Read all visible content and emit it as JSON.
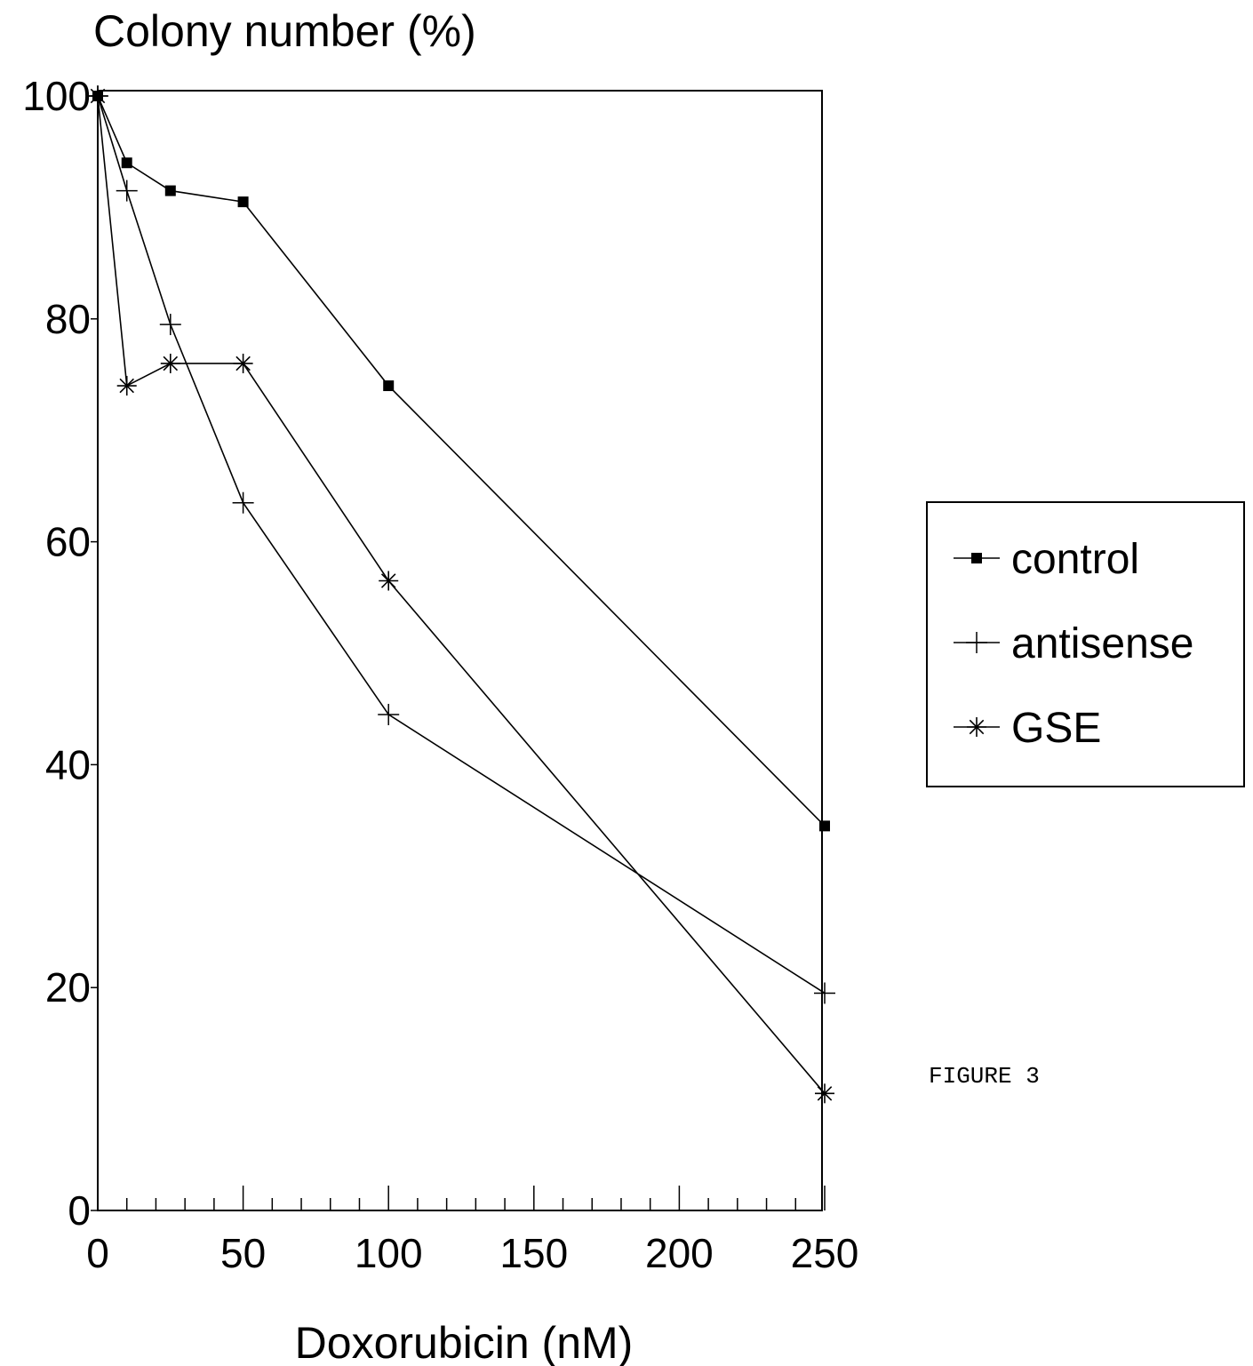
{
  "chart_data": {
    "type": "line",
    "ylabel": "Colony number (%)",
    "xlabel": "Doxorubicin (nM)",
    "xlim": [
      0,
      250
    ],
    "ylim": [
      0,
      100
    ],
    "x_ticks": [
      0,
      50,
      100,
      150,
      200,
      250
    ],
    "y_ticks": [
      0,
      20,
      40,
      60,
      80,
      100
    ],
    "grid": false,
    "legend_position": "right",
    "series": [
      {
        "name": "control",
        "marker": "square",
        "x": [
          0,
          10,
          25,
          50,
          100,
          250
        ],
        "y": [
          100,
          94,
          91.5,
          90.5,
          74,
          34.5
        ]
      },
      {
        "name": "antisense",
        "marker": "plus",
        "x": [
          0,
          10,
          25,
          50,
          100,
          250
        ],
        "y": [
          100,
          91.5,
          79.5,
          63.5,
          44.5,
          19.5
        ]
      },
      {
        "name": "GSE",
        "marker": "asterisk",
        "x": [
          0,
          10,
          25,
          50,
          100,
          250
        ],
        "y": [
          100,
          74,
          76,
          76,
          56.5,
          10.5
        ]
      }
    ]
  },
  "caption": "FIGURE 3",
  "colors": {
    "line": "#000000",
    "background": "#ffffff"
  }
}
